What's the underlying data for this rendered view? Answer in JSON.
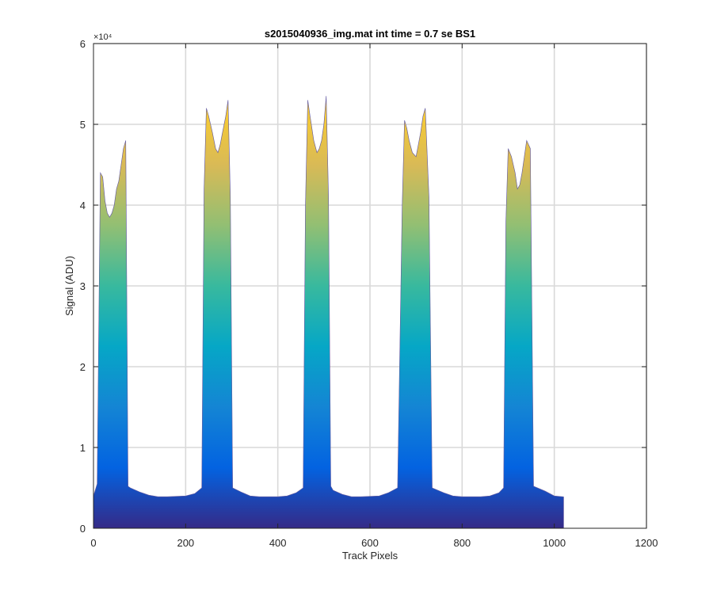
{
  "chart_data": {
    "type": "area",
    "title": "s2015040936_img.mat int time = 0.7 se   BS1",
    "xlabel": "Track Pixels",
    "ylabel": "Signal (ADU)",
    "xlim": [
      0,
      1200
    ],
    "ylim": [
      0,
      60000
    ],
    "x_ticks": [
      0,
      200,
      400,
      600,
      800,
      1000,
      1200
    ],
    "x_tick_labels": [
      "0",
      "200",
      "400",
      "600",
      "800",
      "1000",
      "1200"
    ],
    "y_ticks": [
      0,
      10000,
      20000,
      30000,
      40000,
      50000,
      60000
    ],
    "y_tick_labels": [
      "0",
      "1",
      "2",
      "3",
      "4",
      "5",
      "6"
    ],
    "y_exponent_label": "×10⁴",
    "grid": true,
    "colormap": [
      "#352a87",
      "#0363e1",
      "#1485d4",
      "#06a7c6",
      "#38b99e",
      "#92bf73",
      "#d9ba56",
      "#fcce2e",
      "#f9fb0e"
    ],
    "series": [
      {
        "x": [
          0,
          8,
          15,
          20,
          25,
          30,
          35,
          40,
          45,
          50,
          55,
          60,
          65,
          70,
          75,
          80,
          100,
          120,
          140,
          160,
          200,
          220,
          235,
          240,
          245,
          250,
          258,
          265,
          270,
          275,
          280,
          287,
          292,
          297,
          302,
          320,
          340,
          360,
          400,
          420,
          440,
          455,
          460,
          465,
          470,
          478,
          485,
          490,
          495,
          500,
          505,
          510,
          515,
          520,
          540,
          560,
          580,
          620,
          640,
          660,
          670,
          675,
          680,
          685,
          692,
          700,
          705,
          710,
          715,
          720,
          728,
          735,
          760,
          780,
          800,
          840,
          860,
          880,
          890,
          895,
          900,
          907,
          915,
          920,
          925,
          930,
          935,
          940,
          948,
          955,
          980,
          1000,
          1020
        ],
        "y": [
          4000,
          5500,
          44000,
          43500,
          40500,
          39000,
          38500,
          39000,
          40000,
          42000,
          43000,
          45000,
          47000,
          48000,
          5200,
          5000,
          4500,
          4100,
          3900,
          3900,
          4000,
          4300,
          5000,
          42000,
          52000,
          51000,
          49000,
          47000,
          46500,
          47500,
          49000,
          51000,
          53000,
          41000,
          5000,
          4500,
          4000,
          3900,
          3900,
          4000,
          4400,
          5000,
          40000,
          53000,
          51000,
          48000,
          46500,
          47000,
          48000,
          50000,
          53500,
          41000,
          5200,
          4700,
          4200,
          3900,
          3900,
          4000,
          4400,
          5000,
          40000,
          50500,
          49500,
          48000,
          46500,
          46000,
          47500,
          49000,
          51000,
          52000,
          41000,
          5000,
          4400,
          4000,
          3900,
          3900,
          4000,
          4400,
          5000,
          38000,
          47000,
          46000,
          44000,
          42000,
          42500,
          44000,
          46000,
          48000,
          47000,
          5200,
          4600,
          4000,
          3900
        ]
      }
    ]
  }
}
